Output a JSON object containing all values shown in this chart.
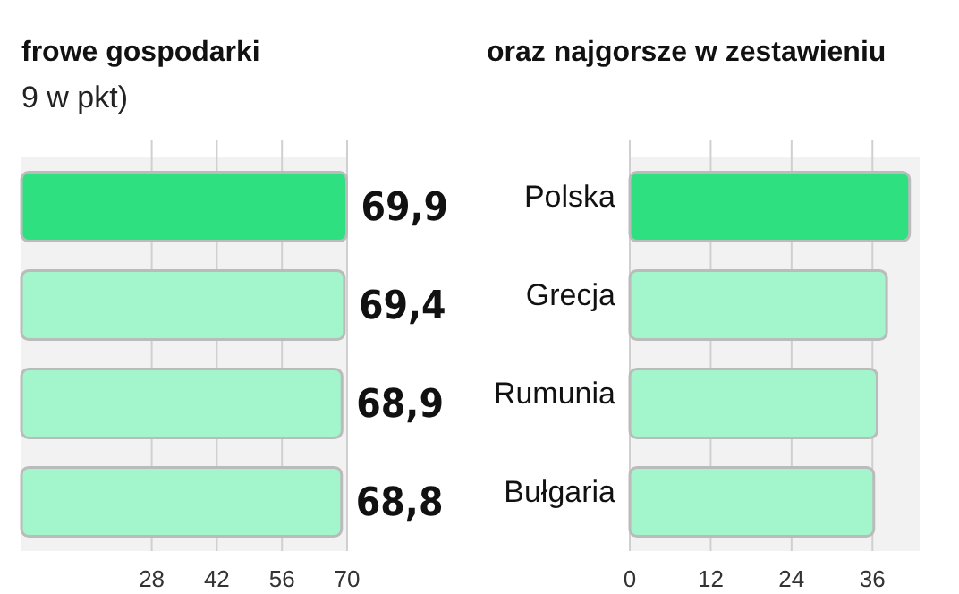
{
  "chart_data": [
    {
      "type": "bar",
      "orientation": "horizontal",
      "title": "frowe gospodarki",
      "subtitle": "9 w pkt)",
      "categories": [
        null,
        null,
        null,
        null
      ],
      "values": [
        69.9,
        69.4,
        68.9,
        68.8
      ],
      "colors": [
        "#2ee080",
        "#a3f5cc",
        "#a3f5cc",
        "#a3f5cc"
      ],
      "value_labels": [
        "69,9",
        "69,4",
        "68,9",
        "68,8"
      ],
      "xlim": [
        0,
        70
      ],
      "xticks": [
        28,
        42,
        56,
        70
      ],
      "grid": "x"
    },
    {
      "type": "bar",
      "orientation": "horizontal",
      "title": "oraz najgorsze w zestawieniu",
      "categories": [
        "Polska",
        "Grecja",
        "Rumunia",
        "Bułgaria"
      ],
      "values": [
        41.5,
        38.1,
        36.7,
        36.2
      ],
      "colors": [
        "#2ee080",
        "#a3f5cc",
        "#a3f5cc",
        "#a3f5cc"
      ],
      "xlim": [
        0,
        43
      ],
      "xticks": [
        0,
        12,
        24,
        36
      ],
      "grid": "x"
    }
  ]
}
